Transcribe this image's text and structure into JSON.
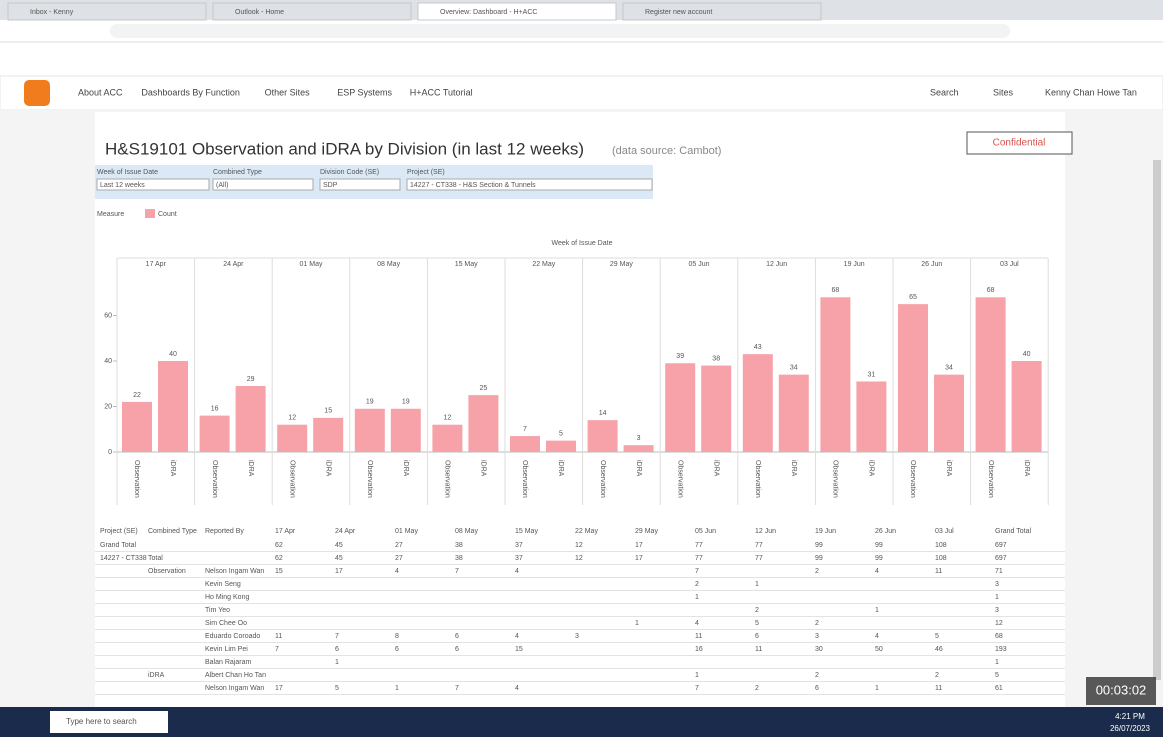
{
  "browser": {
    "tabs": [
      "Inbox - Kenny",
      "Outlook - Home",
      "Overview: Dashboard - H+ACC",
      "Register new account"
    ]
  },
  "nav": {
    "items": [
      "About ACC",
      "Dashboards By Function",
      "Other Sites",
      "ESP Systems",
      "H+ACC Tutorial"
    ],
    "search": "Search",
    "sites": "Sites",
    "user": "Kenny Chan Howe Tan"
  },
  "dashboard": {
    "title": "H&S19101 Observation and iDRA by Division (in last 12 weeks)",
    "source": "(data source: Cambot)",
    "badge": "Confidential",
    "filters": [
      {
        "label": "Week of Issue Date",
        "value": "Last 12 weeks"
      },
      {
        "label": "Combined Type",
        "value": "(All)"
      },
      {
        "label": "Division Code (SE)",
        "value": "SDP"
      },
      {
        "label": "Project (SE)",
        "value": "14227 - CT338 - H&S Section & Tunnels"
      }
    ],
    "legend_title": "Measure",
    "legend_item": "Count",
    "chart": {
      "header": "Week of Issue Date",
      "weeks": [
        "17 Apr",
        "24 Apr",
        "01 May",
        "08 May",
        "15 May",
        "22 May",
        "29 May",
        "05 Jun",
        "12 Jun",
        "19 Jun",
        "26 Jun",
        "03 Jul"
      ],
      "types": [
        "Observation",
        "iDRA"
      ],
      "values": [
        [
          22,
          40
        ],
        [
          16,
          29
        ],
        [
          12,
          15
        ],
        [
          19,
          19
        ],
        [
          12,
          25
        ],
        [
          7,
          5
        ],
        [
          14,
          3
        ],
        [
          39,
          38
        ],
        [
          43,
          34
        ],
        [
          68,
          31
        ],
        [
          65,
          34
        ],
        [
          68,
          40
        ]
      ],
      "ylim": [
        0,
        80
      ],
      "yticks": [
        0,
        20,
        40,
        60
      ]
    }
  },
  "table": {
    "headers": [
      "Project (SE)",
      "Combined Type",
      "Reported By",
      "17 Apr",
      "24 Apr",
      "01 May",
      "08 May",
      "15 May",
      "22 May",
      "29 May",
      "05 Jun",
      "12 Jun",
      "19 Jun",
      "26 Jun",
      "03 Jul",
      "Grand Total"
    ],
    "rows": [
      [
        "Grand Total",
        null,
        null,
        62,
        45,
        27,
        38,
        37,
        12,
        17,
        77,
        77,
        99,
        99,
        108,
        697
      ],
      [
        "14227 - CT338",
        "Total",
        null,
        62,
        45,
        27,
        38,
        37,
        12,
        17,
        77,
        77,
        99,
        99,
        108,
        697
      ],
      [
        null,
        "Observation",
        "Nelson Ingam Wan",
        15,
        17,
        4,
        7,
        4,
        null,
        null,
        7,
        null,
        2,
        4,
        11,
        71
      ],
      [
        null,
        null,
        "Kevin Seng",
        null,
        null,
        null,
        null,
        null,
        null,
        null,
        2,
        1,
        null,
        null,
        null,
        3
      ],
      [
        null,
        null,
        "Ho Ming Kong",
        null,
        null,
        null,
        null,
        null,
        null,
        null,
        1,
        null,
        null,
        null,
        null,
        1
      ],
      [
        null,
        null,
        "Tim Yeo",
        null,
        null,
        null,
        null,
        null,
        null,
        null,
        null,
        2,
        null,
        1,
        null,
        3
      ],
      [
        null,
        null,
        "Sim Chee Oo",
        null,
        null,
        null,
        null,
        null,
        null,
        1,
        4,
        5,
        2,
        null,
        null,
        12
      ],
      [
        null,
        null,
        "Eduardo Coroado",
        11,
        7,
        8,
        6,
        4,
        3,
        null,
        11,
        6,
        3,
        4,
        5,
        68
      ],
      [
        null,
        null,
        "Kevin Lim Pei",
        7,
        6,
        6,
        6,
        15,
        null,
        null,
        16,
        11,
        30,
        50,
        46,
        193
      ],
      [
        null,
        null,
        "Balan Rajaram",
        null,
        1,
        null,
        null,
        null,
        null,
        null,
        null,
        null,
        null,
        null,
        null,
        1
      ],
      [
        null,
        "iDRA",
        "Albert Chan Ho Tan",
        null,
        null,
        null,
        null,
        null,
        null,
        null,
        1,
        null,
        2,
        null,
        2,
        5
      ],
      [
        null,
        null,
        "Nelson Ingam Wan",
        17,
        5,
        1,
        7,
        4,
        null,
        null,
        7,
        2,
        6,
        1,
        11,
        61
      ]
    ]
  },
  "taskbar": {
    "search": "Type here to search",
    "timer": "00:03:02",
    "time": "4:21 PM",
    "date": "26/07/2023"
  }
}
